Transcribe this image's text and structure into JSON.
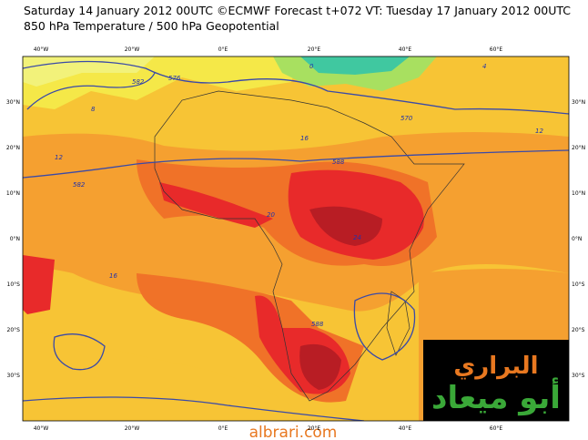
{
  "header": {
    "line1": "Saturday 14 January 2012 00UTC ©ECMWF Forecast t+072 VT: Tuesday 17 January 2012 00UTC",
    "line2": "850 hPa Temperature / 500 hPa Geopotential"
  },
  "axes": {
    "longitudes": [
      "40°W",
      "20°W",
      "0°E",
      "20°E",
      "40°E",
      "60°E"
    ],
    "latitudes": [
      "30°N",
      "20°N",
      "10°N",
      "0°N",
      "10°S",
      "20°S",
      "30°S"
    ]
  },
  "contour_labels": [
    "576",
    "582",
    "570",
    "588",
    "12",
    "16",
    "20",
    "24",
    "8",
    "4",
    "0",
    "582",
    "588",
    "16",
    "12"
  ],
  "logo": {
    "line1": "البراري",
    "line2": "أبو ميعاد"
  },
  "footer": "albrari.com"
}
